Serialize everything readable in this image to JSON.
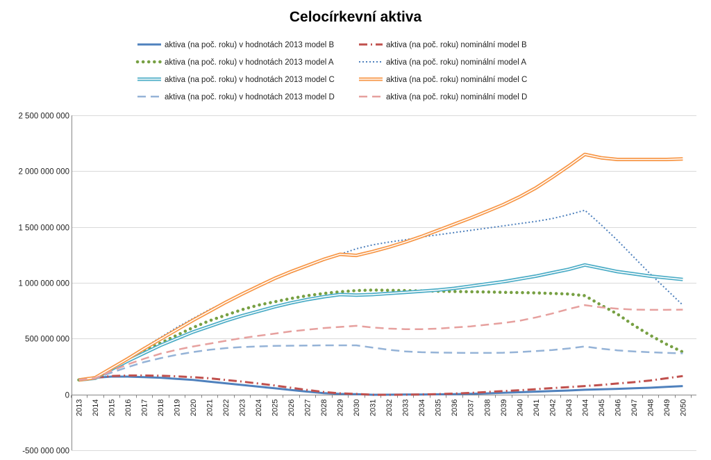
{
  "chart_data": {
    "type": "line",
    "title": "Celocírkevní aktiva",
    "xlabel": "",
    "ylabel": "",
    "ylim": [
      -500000000,
      2500000000
    ],
    "yticks": [
      -500000000,
      0,
      500000000,
      1000000000,
      1500000000,
      2000000000,
      2500000000
    ],
    "ytick_labels": [
      "-500 000 000",
      "0",
      "500 000 000",
      "1 000 000 000",
      "1 500 000 000",
      "2 000 000 000",
      "2 500 000 000"
    ],
    "grid": true,
    "legend_position": "top",
    "categories": [
      "2013",
      "2014",
      "2015",
      "2016",
      "2017",
      "2018",
      "2019",
      "2020",
      "2021",
      "2022",
      "2023",
      "2024",
      "2025",
      "2026",
      "2027",
      "2028",
      "2029",
      "2030",
      "2031",
      "2032",
      "2033",
      "2034",
      "2035",
      "2036",
      "2037",
      "2038",
      "2039",
      "2040",
      "2041",
      "2042",
      "2043",
      "2044",
      "2045",
      "2046",
      "2047",
      "2048",
      "2049",
      "2050"
    ],
    "series": [
      {
        "name": "aktiva (na poč. roku) v hodnotách 2013 model B",
        "color": "#4f81bd",
        "style": "solid",
        "values": [
          135000000,
          150000000,
          160000000,
          160000000,
          155000000,
          150000000,
          140000000,
          130000000,
          115000000,
          100000000,
          85000000,
          70000000,
          55000000,
          40000000,
          25000000,
          12000000,
          5000000,
          2000000,
          -3000000,
          -2000000,
          -1000000,
          0,
          1000000,
          3000000,
          6000000,
          10000000,
          15000000,
          20000000,
          25000000,
          30000000,
          35000000,
          42000000,
          46000000,
          50000000,
          55000000,
          60000000,
          68000000,
          75000000
        ]
      },
      {
        "name": "aktiva (na poč. roku) nominální model B",
        "color": "#c0504d",
        "style": "dashdot",
        "values": [
          135000000,
          150000000,
          165000000,
          170000000,
          170000000,
          168000000,
          162000000,
          155000000,
          145000000,
          130000000,
          115000000,
          98000000,
          80000000,
          60000000,
          40000000,
          22000000,
          10000000,
          5000000,
          -3000000,
          -3000000,
          -2000000,
          0,
          3000000,
          8000000,
          14000000,
          22000000,
          30000000,
          38000000,
          47000000,
          57000000,
          66000000,
          75000000,
          85000000,
          98000000,
          110000000,
          125000000,
          145000000,
          165000000
        ]
      },
      {
        "name": "aktiva (na poč. roku) v hodnotách 2013 model A",
        "color": "#77a043",
        "style": "dots",
        "values": [
          130000000,
          145000000,
          230000000,
          310000000,
          390000000,
          460000000,
          530000000,
          600000000,
          660000000,
          710000000,
          760000000,
          800000000,
          830000000,
          860000000,
          885000000,
          905000000,
          920000000,
          930000000,
          935000000,
          933000000,
          930000000,
          928000000,
          925000000,
          922000000,
          920000000,
          918000000,
          915000000,
          912000000,
          910000000,
          905000000,
          900000000,
          885000000,
          800000000,
          720000000,
          620000000,
          530000000,
          450000000,
          380000000
        ]
      },
      {
        "name": "aktiva (na poč. roku) nominální model A",
        "color": "#4f81bd",
        "style": "dotted",
        "values": [
          130000000,
          160000000,
          240000000,
          330000000,
          420000000,
          510000000,
          600000000,
          680000000,
          760000000,
          830000000,
          900000000,
          970000000,
          1030000000,
          1090000000,
          1145000000,
          1200000000,
          1255000000,
          1305000000,
          1340000000,
          1365000000,
          1385000000,
          1410000000,
          1430000000,
          1450000000,
          1470000000,
          1490000000,
          1510000000,
          1530000000,
          1550000000,
          1575000000,
          1610000000,
          1650000000,
          1520000000,
          1380000000,
          1230000000,
          1080000000,
          940000000,
          800000000
        ]
      },
      {
        "name": "aktiva (na poč. roku) v hodnotách 2013 model C",
        "color": "#4bacc6",
        "style": "double",
        "values": [
          130000000,
          145000000,
          225000000,
          300000000,
          370000000,
          440000000,
          500000000,
          560000000,
          610000000,
          660000000,
          705000000,
          745000000,
          785000000,
          820000000,
          850000000,
          875000000,
          895000000,
          890000000,
          895000000,
          905000000,
          915000000,
          925000000,
          935000000,
          950000000,
          970000000,
          990000000,
          1010000000,
          1035000000,
          1060000000,
          1090000000,
          1120000000,
          1160000000,
          1130000000,
          1100000000,
          1080000000,
          1060000000,
          1045000000,
          1030000000
        ]
      },
      {
        "name": "aktiva (na poč. roku) nominální model C",
        "color": "#f79646",
        "style": "double",
        "values": [
          130000000,
          150000000,
          235000000,
          320000000,
          410000000,
          495000000,
          580000000,
          665000000,
          745000000,
          825000000,
          900000000,
          970000000,
          1040000000,
          1100000000,
          1155000000,
          1210000000,
          1255000000,
          1245000000,
          1280000000,
          1320000000,
          1365000000,
          1415000000,
          1470000000,
          1525000000,
          1580000000,
          1640000000,
          1700000000,
          1770000000,
          1850000000,
          1945000000,
          2045000000,
          2150000000,
          2120000000,
          2105000000,
          2105000000,
          2105000000,
          2105000000,
          2110000000
        ]
      },
      {
        "name": "aktiva (na poč. roku) v hodnotách 2013 model D",
        "color": "#95b3d7",
        "style": "dashed",
        "values": [
          130000000,
          145000000,
          195000000,
          245000000,
          290000000,
          325000000,
          355000000,
          380000000,
          400000000,
          415000000,
          425000000,
          430000000,
          435000000,
          437000000,
          438000000,
          440000000,
          440000000,
          440000000,
          420000000,
          400000000,
          385000000,
          378000000,
          375000000,
          373000000,
          372000000,
          372000000,
          374000000,
          380000000,
          388000000,
          398000000,
          412000000,
          430000000,
          410000000,
          395000000,
          385000000,
          378000000,
          372000000,
          368000000
        ]
      },
      {
        "name": "aktiva (na poč. roku) nominální model D",
        "color": "#e6a09e",
        "style": "dashed",
        "values": [
          130000000,
          145000000,
          210000000,
          270000000,
          320000000,
          365000000,
          400000000,
          430000000,
          455000000,
          480000000,
          505000000,
          525000000,
          545000000,
          565000000,
          580000000,
          595000000,
          605000000,
          615000000,
          600000000,
          590000000,
          585000000,
          585000000,
          590000000,
          600000000,
          610000000,
          625000000,
          640000000,
          660000000,
          690000000,
          725000000,
          765000000,
          800000000,
          780000000,
          768000000,
          760000000,
          758000000,
          758000000,
          760000000
        ]
      }
    ]
  }
}
